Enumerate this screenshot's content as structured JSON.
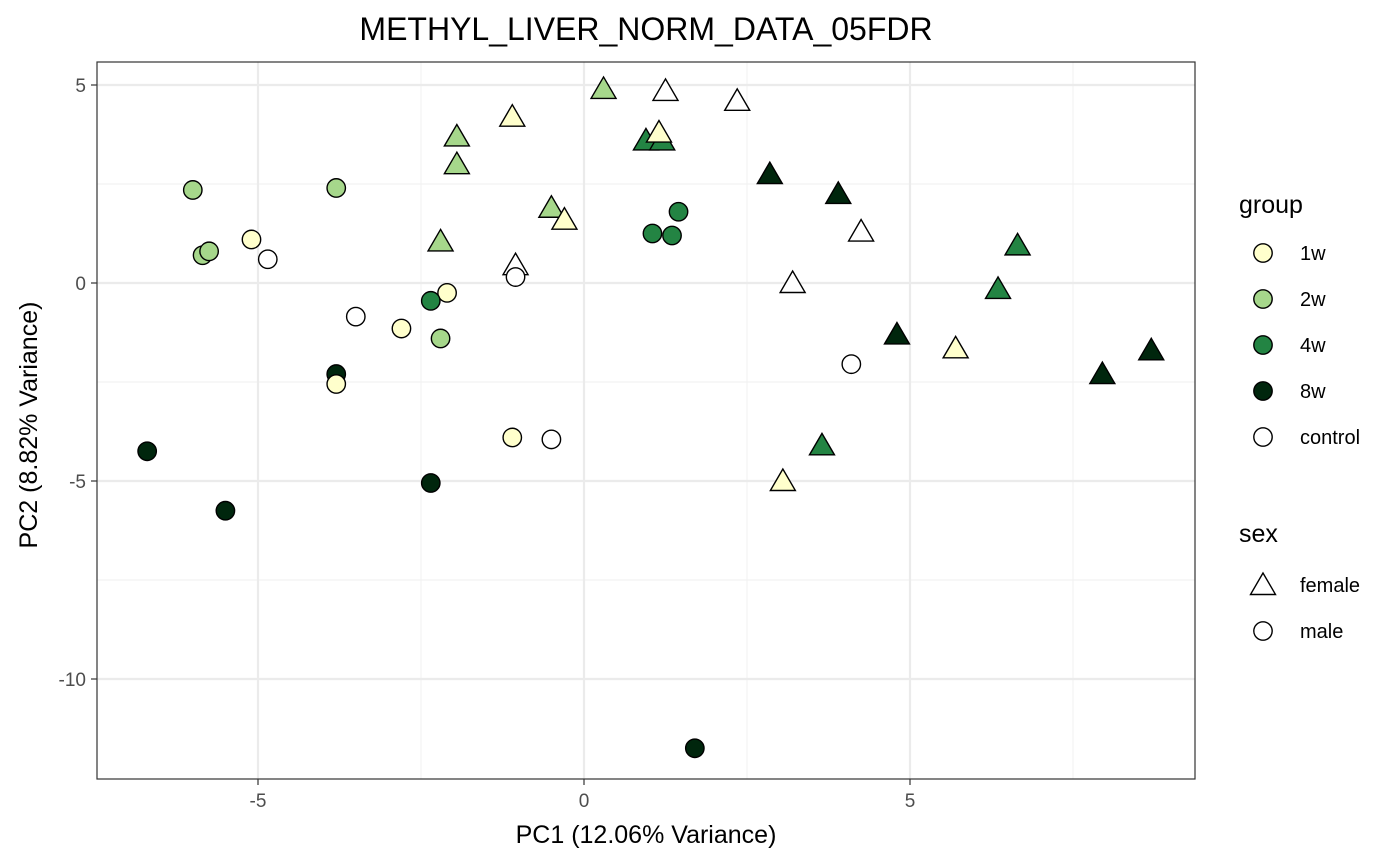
{
  "chart_data": {
    "type": "scatter",
    "title": "METHYL_LIVER_NORM_DATA_05FDR",
    "xlabel": "PC1 (12.06% Variance)",
    "ylabel": "PC2 (8.82% Variance)",
    "xlim": [
      -7.5,
      9.4
    ],
    "ylim": [
      -12.5,
      5.6
    ],
    "x_ticks": [
      -5,
      0,
      5
    ],
    "x_tick_labels": [
      "-5",
      "0",
      "5"
    ],
    "y_ticks": [
      5,
      0,
      -5,
      -10
    ],
    "y_tick_labels": [
      "5",
      "0",
      "-5",
      "-10"
    ],
    "grid": true,
    "legend_placement": "right",
    "legends": {
      "group": {
        "title": "group",
        "items": [
          {
            "key": "1w",
            "label": "1w",
            "color": "#ffffcc"
          },
          {
            "key": "2w",
            "label": "2w",
            "color": "#a6d78b"
          },
          {
            "key": "4w",
            "label": "4w",
            "color": "#238443"
          },
          {
            "key": "8w",
            "label": "8w",
            "color": "#00260d"
          },
          {
            "key": "control",
            "label": "control",
            "color": "#ffffff"
          }
        ]
      },
      "sex": {
        "title": "sex",
        "items": [
          {
            "key": "female",
            "label": "female",
            "shape": "triangle"
          },
          {
            "key": "male",
            "label": "male",
            "shape": "circle"
          }
        ]
      }
    },
    "points": [
      {
        "x": 0.3,
        "y": 4.9,
        "group": "2w",
        "sex": "female"
      },
      {
        "x": 1.25,
        "y": 4.85,
        "group": "control",
        "sex": "female"
      },
      {
        "x": 2.35,
        "y": 4.6,
        "group": "control",
        "sex": "female"
      },
      {
        "x": -1.1,
        "y": 4.2,
        "group": "1w",
        "sex": "female"
      },
      {
        "x": -1.95,
        "y": 3.7,
        "group": "2w",
        "sex": "female"
      },
      {
        "x": 0.95,
        "y": 3.6,
        "group": "4w",
        "sex": "female"
      },
      {
        "x": 1.2,
        "y": 3.6,
        "group": "4w",
        "sex": "female"
      },
      {
        "x": 1.15,
        "y": 3.8,
        "group": "1w",
        "sex": "female"
      },
      {
        "x": -1.95,
        "y": 3.0,
        "group": "2w",
        "sex": "female"
      },
      {
        "x": 2.85,
        "y": 2.75,
        "group": "8w",
        "sex": "female"
      },
      {
        "x": 3.9,
        "y": 2.25,
        "group": "8w",
        "sex": "female"
      },
      {
        "x": -0.5,
        "y": 1.9,
        "group": "2w",
        "sex": "female"
      },
      {
        "x": -0.3,
        "y": 1.6,
        "group": "1w",
        "sex": "female"
      },
      {
        "x": 4.25,
        "y": 1.3,
        "group": "control",
        "sex": "female"
      },
      {
        "x": -2.2,
        "y": 1.05,
        "group": "2w",
        "sex": "female"
      },
      {
        "x": 6.65,
        "y": 0.95,
        "group": "4w",
        "sex": "female"
      },
      {
        "x": -1.05,
        "y": 0.45,
        "group": "control",
        "sex": "female"
      },
      {
        "x": 3.2,
        "y": 0.0,
        "group": "control",
        "sex": "female"
      },
      {
        "x": 6.35,
        "y": -0.15,
        "group": "4w",
        "sex": "female"
      },
      {
        "x": 4.8,
        "y": -1.3,
        "group": "8w",
        "sex": "female"
      },
      {
        "x": 5.7,
        "y": -1.65,
        "group": "1w",
        "sex": "female"
      },
      {
        "x": 8.7,
        "y": -1.7,
        "group": "8w",
        "sex": "female"
      },
      {
        "x": 7.95,
        "y": -2.3,
        "group": "8w",
        "sex": "female"
      },
      {
        "x": 3.65,
        "y": -4.1,
        "group": "4w",
        "sex": "female"
      },
      {
        "x": 3.05,
        "y": -5.0,
        "group": "1w",
        "sex": "female"
      },
      {
        "x": -6.0,
        "y": 2.35,
        "group": "2w",
        "sex": "male"
      },
      {
        "x": -3.8,
        "y": 2.4,
        "group": "2w",
        "sex": "male"
      },
      {
        "x": 1.45,
        "y": 1.8,
        "group": "4w",
        "sex": "male"
      },
      {
        "x": 1.05,
        "y": 1.25,
        "group": "4w",
        "sex": "male"
      },
      {
        "x": 1.35,
        "y": 1.2,
        "group": "4w",
        "sex": "male"
      },
      {
        "x": -5.1,
        "y": 1.1,
        "group": "1w",
        "sex": "male"
      },
      {
        "x": -5.85,
        "y": 0.7,
        "group": "2w",
        "sex": "male"
      },
      {
        "x": -5.75,
        "y": 0.8,
        "group": "2w",
        "sex": "male"
      },
      {
        "x": -4.85,
        "y": 0.6,
        "group": "control",
        "sex": "male"
      },
      {
        "x": -1.05,
        "y": 0.15,
        "group": "control",
        "sex": "male"
      },
      {
        "x": -2.1,
        "y": -0.25,
        "group": "1w",
        "sex": "male"
      },
      {
        "x": -2.35,
        "y": -0.45,
        "group": "4w",
        "sex": "male"
      },
      {
        "x": -3.5,
        "y": -0.85,
        "group": "control",
        "sex": "male"
      },
      {
        "x": -2.8,
        "y": -1.15,
        "group": "1w",
        "sex": "male"
      },
      {
        "x": -2.2,
        "y": -1.4,
        "group": "2w",
        "sex": "male"
      },
      {
        "x": 4.1,
        "y": -2.05,
        "group": "control",
        "sex": "male"
      },
      {
        "x": -3.8,
        "y": -2.3,
        "group": "8w",
        "sex": "male"
      },
      {
        "x": -3.8,
        "y": -2.55,
        "group": "1w",
        "sex": "male"
      },
      {
        "x": -1.1,
        "y": -3.9,
        "group": "1w",
        "sex": "male"
      },
      {
        "x": -0.5,
        "y": -3.95,
        "group": "control",
        "sex": "male"
      },
      {
        "x": -6.7,
        "y": -4.25,
        "group": "8w",
        "sex": "male"
      },
      {
        "x": -2.35,
        "y": -5.05,
        "group": "8w",
        "sex": "male"
      },
      {
        "x": -5.5,
        "y": -5.75,
        "group": "8w",
        "sex": "male"
      },
      {
        "x": 1.7,
        "y": -11.75,
        "group": "8w",
        "sex": "male"
      }
    ]
  }
}
